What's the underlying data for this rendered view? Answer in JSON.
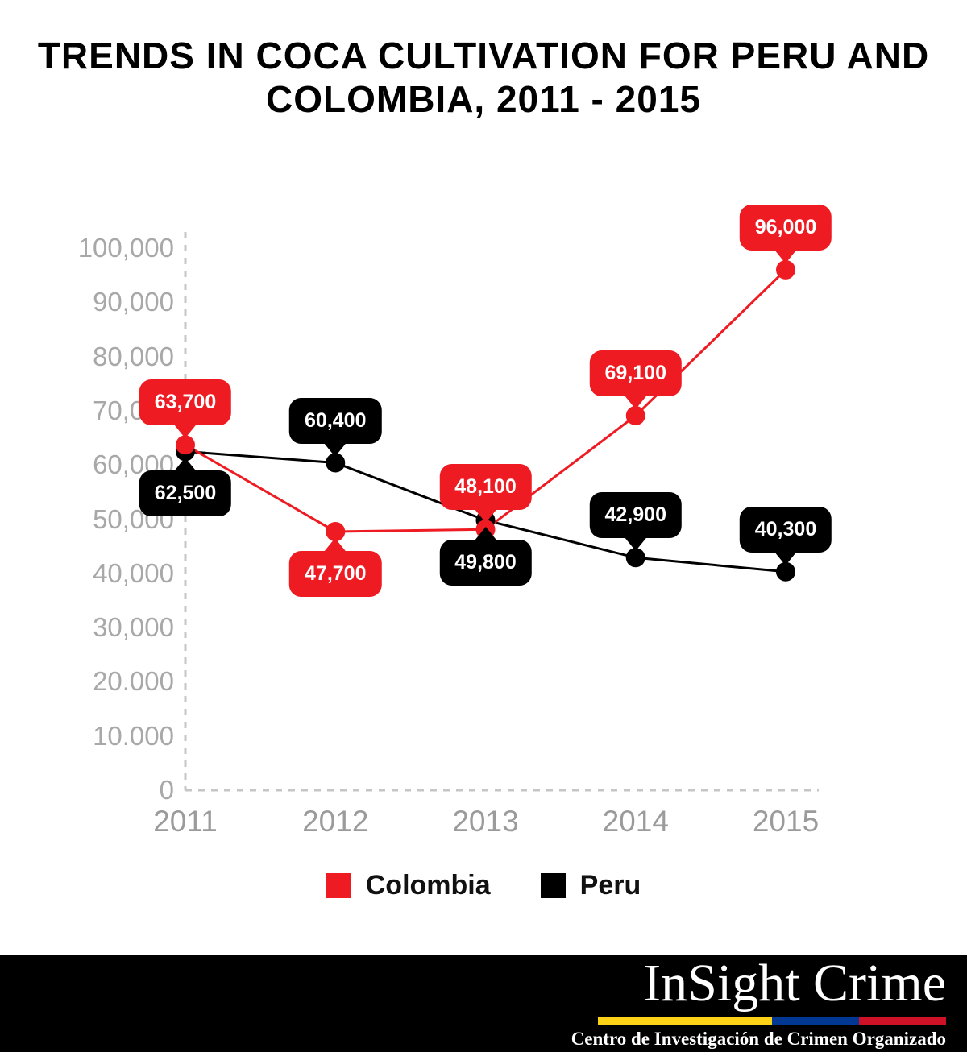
{
  "title": {
    "line1": "TRENDS IN COCA CULTIVATION FOR PERU AND",
    "line2": "COLOMBIA, 2011 - 2015"
  },
  "chart_data": {
    "type": "line",
    "title": "Trends in coca cultivation for Peru and Colombia, 2011 - 2015",
    "categories": [
      "2011",
      "2012",
      "2013",
      "2014",
      "2015"
    ],
    "series": [
      {
        "name": "Colombia",
        "color": "#ee1b22",
        "values": [
          63700,
          47700,
          48100,
          69100,
          96000
        ],
        "labels": [
          "63,700",
          "47,700",
          "48,100",
          "69,100",
          "96,000"
        ],
        "label_positions": [
          "above",
          "below",
          "above",
          "above",
          "above"
        ]
      },
      {
        "name": "Peru",
        "color": "#000000",
        "values": [
          62500,
          60400,
          49800,
          42900,
          40300
        ],
        "labels": [
          "62,500",
          "60,400",
          "49,800",
          "42,900",
          "40,300"
        ],
        "label_positions": [
          "below",
          "above",
          "below",
          "above",
          "above"
        ]
      }
    ],
    "ylim": [
      0,
      100000
    ],
    "ytick_step": 10000,
    "ytick_labels": [
      "0",
      "10.000",
      "20.000",
      "30,000",
      "40,000",
      "50,000",
      "60,000",
      "70,000",
      "80,000",
      "90,000",
      "100,000"
    ],
    "xlabel": "",
    "ylabel": "",
    "grid": false,
    "axis_style": "dashed-gray",
    "legend_position": "bottom"
  },
  "legend": {
    "items": [
      {
        "label": "Colombia",
        "color": "#ee1b22"
      },
      {
        "label": "Peru",
        "color": "#000000"
      }
    ]
  },
  "footer": {
    "brand": "InSight Crime",
    "tagline": "Centro de Investigación de Crimen Organizado",
    "flag_colors": [
      "#FCD116",
      "#003893",
      "#CE1126"
    ]
  }
}
